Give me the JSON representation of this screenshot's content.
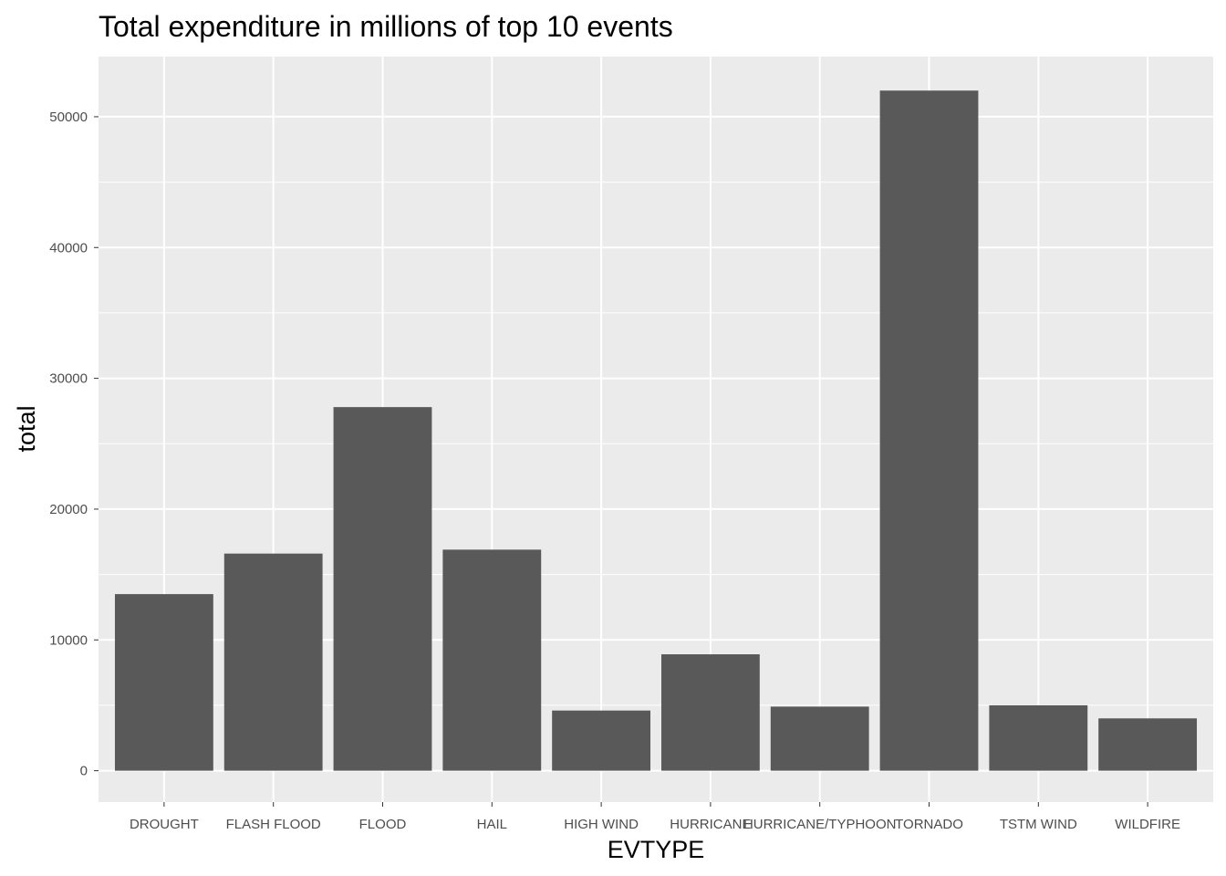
{
  "chart_data": {
    "type": "bar",
    "title": "Total expenditure in millions of top 10 events",
    "xlabel": "EVTYPE",
    "ylabel": "total",
    "categories": [
      "DROUGHT",
      "FLASH FLOOD",
      "FLOOD",
      "HAIL",
      "HIGH WIND",
      "HURRICANE",
      "HURRICANE/TYPHOON",
      "TORNADO",
      "TSTM WIND",
      "WILDFIRE"
    ],
    "values": [
      13500,
      16600,
      27800,
      16900,
      4600,
      8900,
      4900,
      52000,
      5000,
      4000
    ],
    "ylim": [
      -2400,
      54600
    ],
    "yticks": [
      0,
      10000,
      20000,
      30000,
      40000,
      50000
    ],
    "ytick_labels": [
      "0",
      "10000",
      "20000",
      "30000",
      "40000",
      "50000"
    ],
    "grid": true,
    "colors": {
      "panel_background": "#ebebeb",
      "grid": "#ffffff",
      "bar": "#595959",
      "tick_text": "#4d4d4d",
      "text": "#000000"
    }
  }
}
